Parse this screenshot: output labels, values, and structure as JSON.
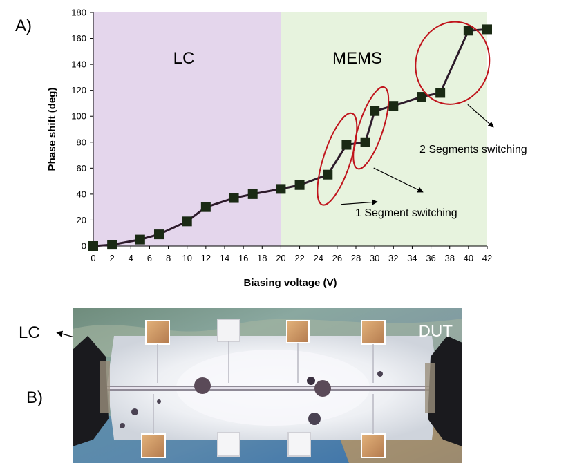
{
  "panel_labels": {
    "a": "A)",
    "b": "B)"
  },
  "chart_data": {
    "type": "line",
    "xlabel": "Biasing voltage (V)",
    "ylabel": "Phase shift (deg)",
    "xlim": [
      0,
      42
    ],
    "ylim": [
      0,
      180
    ],
    "x_ticks": [
      0,
      2,
      4,
      6,
      8,
      10,
      12,
      14,
      16,
      18,
      20,
      22,
      24,
      26,
      28,
      30,
      32,
      34,
      36,
      38,
      40,
      42
    ],
    "y_ticks": [
      0,
      20,
      40,
      60,
      80,
      100,
      120,
      140,
      160,
      180
    ],
    "regions": [
      {
        "label": "LC",
        "from": 0,
        "to": 20,
        "color": "#e4d6ec"
      },
      {
        "label": "MEMS",
        "from": 20,
        "to": 42,
        "color": "#e7f3de"
      }
    ],
    "series": [
      {
        "x": [
          0,
          2,
          5,
          7,
          10,
          12,
          15,
          17,
          20,
          22,
          25,
          27,
          29,
          30,
          32,
          35,
          37,
          40,
          42
        ],
        "y": [
          0,
          1,
          5,
          9,
          19,
          30,
          37,
          40,
          44,
          47,
          55,
          78,
          80,
          104,
          108,
          115,
          118,
          166,
          167
        ],
        "line_color": "#2d1b2b",
        "marker_color": "#1a2a14"
      }
    ],
    "annotations": [
      {
        "text": "1 Segment switching",
        "ellipses": [
          {
            "cx": 26,
            "cy": 67,
            "rx": 1.45,
            "ry": 37
          },
          {
            "cx": 29.6,
            "cy": 91,
            "rx": 1.3,
            "ry": 33
          }
        ]
      },
      {
        "text": "2 Segments switching",
        "ellipses": [
          {
            "cx": 38.3,
            "cy": 141,
            "rx": 3.9,
            "ry": 32
          }
        ]
      }
    ],
    "ellipse_color": "#c0141c",
    "grid": false,
    "legend": "none"
  },
  "photo": {
    "labels": {
      "dut": "DUT",
      "lc": "LC"
    }
  }
}
